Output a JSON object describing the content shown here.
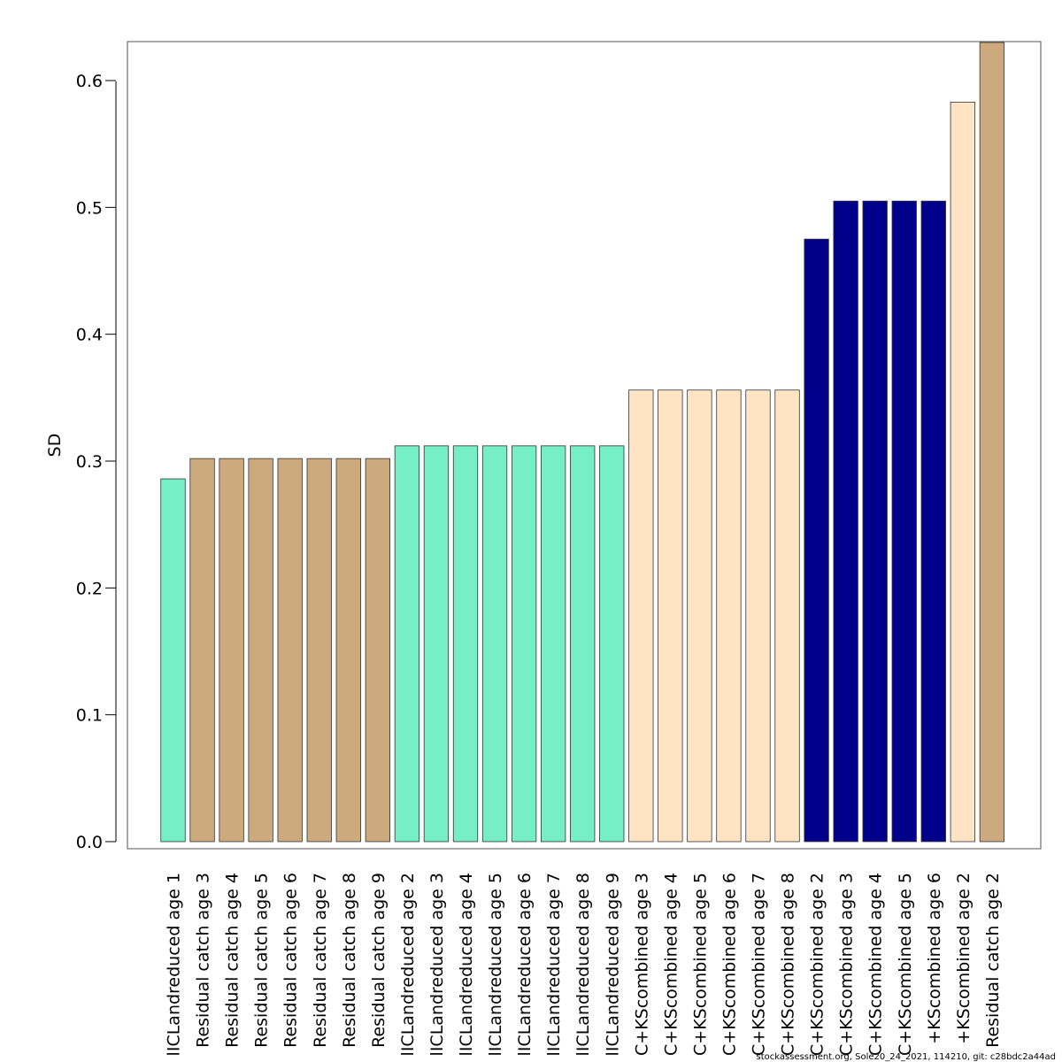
{
  "chart_data": {
    "type": "bar",
    "ylabel": "SD",
    "ylim": [
      0,
      0.63
    ],
    "yticks": [
      "0.0",
      "0.1",
      "0.2",
      "0.3",
      "0.4",
      "0.5",
      "0.6"
    ],
    "grid": false,
    "categories": [
      "lICLandreduced age 1",
      "Residual catch age 3",
      "Residual catch age 4",
      "Residual catch age 5",
      "Residual catch age 6",
      "Residual catch age 7",
      "Residual catch age 8",
      "Residual catch age 9",
      "lICLandreduced age 2",
      "lICLandreduced age 3",
      "lICLandreduced age 4",
      "lICLandreduced age 5",
      "lICLandreduced age 6",
      "lICLandreduced age 7",
      "lICLandreduced age 8",
      "lICLandreduced age 9",
      "C+KScombined age 3",
      "C+KScombined age 4",
      "C+KScombined age 5",
      "C+KScombined age 6",
      "C+KScombined age 7",
      "C+KScombined age 8",
      "C+KScombined age 2",
      "C+KScombined age 3",
      "C+KScombined age 4",
      "C+KScombined age 5",
      "+KScombined age 6",
      "+KScombined age 2",
      "Residual catch age 2"
    ],
    "values": [
      0.286,
      0.302,
      0.302,
      0.302,
      0.302,
      0.302,
      0.302,
      0.302,
      0.312,
      0.312,
      0.312,
      0.312,
      0.312,
      0.312,
      0.312,
      0.312,
      0.356,
      0.356,
      0.356,
      0.356,
      0.356,
      0.356,
      0.475,
      0.505,
      0.505,
      0.505,
      0.505,
      0.583,
      0.63
    ],
    "colors": [
      "#76EEC6",
      "#CDAA7D",
      "#CDAA7D",
      "#CDAA7D",
      "#CDAA7D",
      "#CDAA7D",
      "#CDAA7D",
      "#CDAA7D",
      "#76EEC6",
      "#76EEC6",
      "#76EEC6",
      "#76EEC6",
      "#76EEC6",
      "#76EEC6",
      "#76EEC6",
      "#76EEC6",
      "#FFE4C4",
      "#FFE4C4",
      "#FFE4C4",
      "#FFE4C4",
      "#FFE4C4",
      "#FFE4C4",
      "#00008B",
      "#00008B",
      "#00008B",
      "#00008B",
      "#00008B",
      "#FFE4C4",
      "#CDAA7D"
    ]
  },
  "footer": "stockassessment.org, Sole20_24_2021, 114210, git: c28bdc2a44ad"
}
